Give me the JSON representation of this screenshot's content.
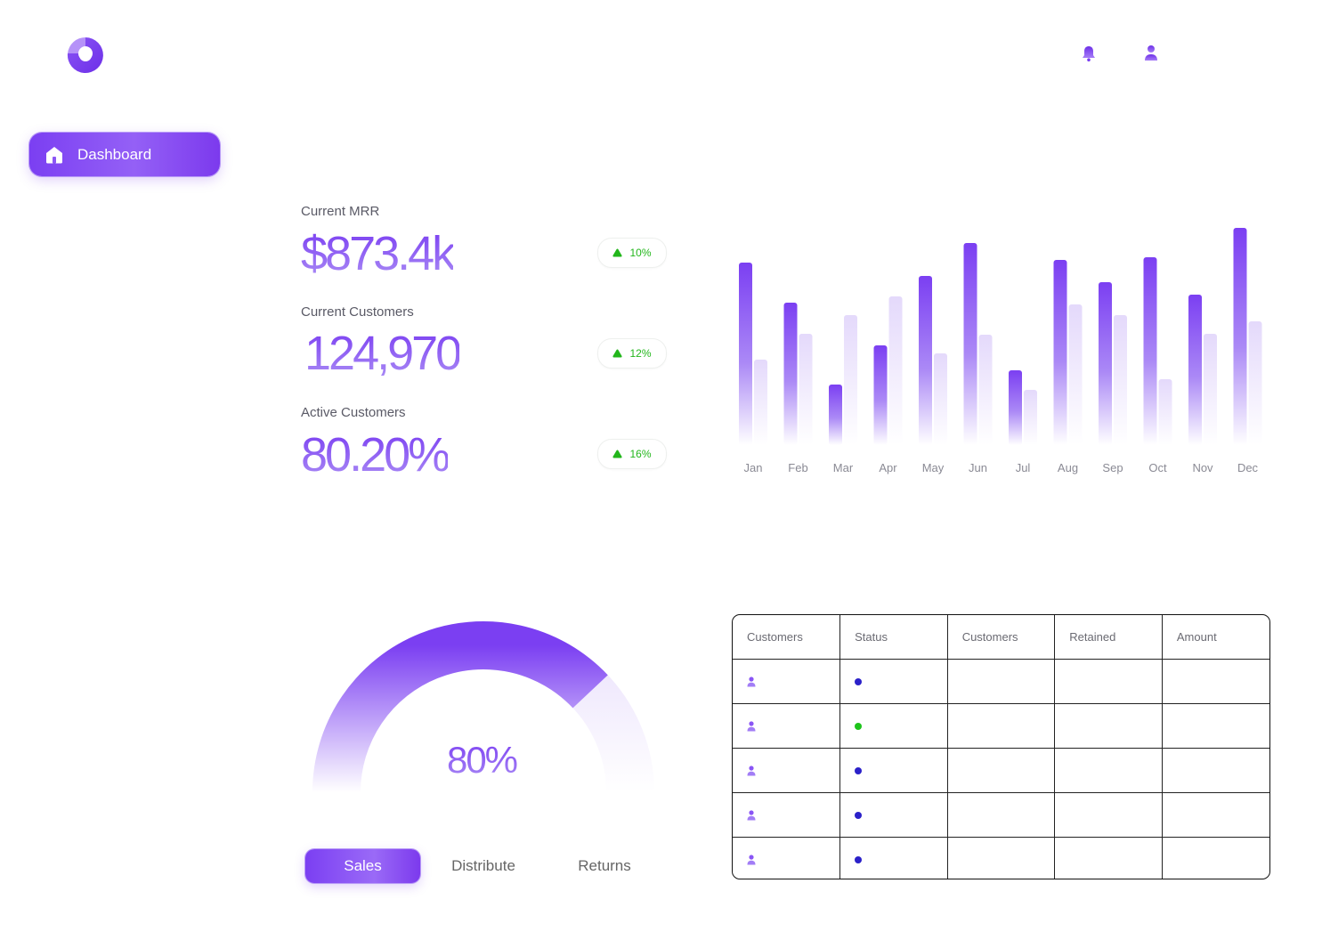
{
  "sidebar": {
    "items": [
      {
        "label": "Dashboard",
        "icon": "home-icon",
        "active": true
      }
    ]
  },
  "header": {
    "icons": [
      "bell-icon",
      "user-icon"
    ]
  },
  "kpis": [
    {
      "label": "Current MRR",
      "value": "$873.4k",
      "change": "10%",
      "trend": "up"
    },
    {
      "label": "Current Customers",
      "value": "124,970",
      "change": "12%",
      "trend": "up"
    },
    {
      "label": "Active Customers",
      "value": "80.20%",
      "change": "16%",
      "trend": "up"
    }
  ],
  "chart_data": {
    "type": "bar",
    "categories": [
      "Jan",
      "Feb",
      "Mar",
      "Apr",
      "May",
      "Jun",
      "Jul",
      "Aug",
      "Sep",
      "Oct",
      "Nov",
      "Dec"
    ],
    "series": [
      {
        "values": [
          205,
          160,
          68,
          112,
          190,
          227,
          84,
          208,
          183,
          211,
          169,
          244
        ]
      },
      {
        "values": [
          96,
          125,
          146,
          167,
          103,
          124,
          62,
          158,
          146,
          74,
          125,
          139
        ]
      }
    ],
    "ylim": [
      0,
      260
    ],
    "colors": [
      "#7b3ff2",
      "#e6dcfb"
    ]
  },
  "gauge": {
    "value": "80%",
    "fraction": 0.8,
    "colors": {
      "fill": "#7b3ff2",
      "track": "#ece4fc"
    }
  },
  "tabs": [
    {
      "label": "Sales",
      "active": true
    },
    {
      "label": "Distribute",
      "active": false
    },
    {
      "label": "Returns",
      "active": false
    }
  ],
  "table": {
    "columns": [
      "Customers",
      "Status",
      "Customers",
      "Retained",
      "Amount"
    ],
    "rows": [
      {
        "status": "blue",
        "status_color": "#2b21c9"
      },
      {
        "status": "green",
        "status_color": "#1ec41b"
      },
      {
        "status": "blue",
        "status_color": "#2b21c9"
      },
      {
        "status": "blue",
        "status_color": "#2b21c9"
      },
      {
        "status": "blue",
        "status_color": "#2b21c9"
      }
    ]
  },
  "colors": {
    "accent": "#7b3ff2",
    "accent_light": "#a98af5",
    "positive": "#22b61b"
  }
}
